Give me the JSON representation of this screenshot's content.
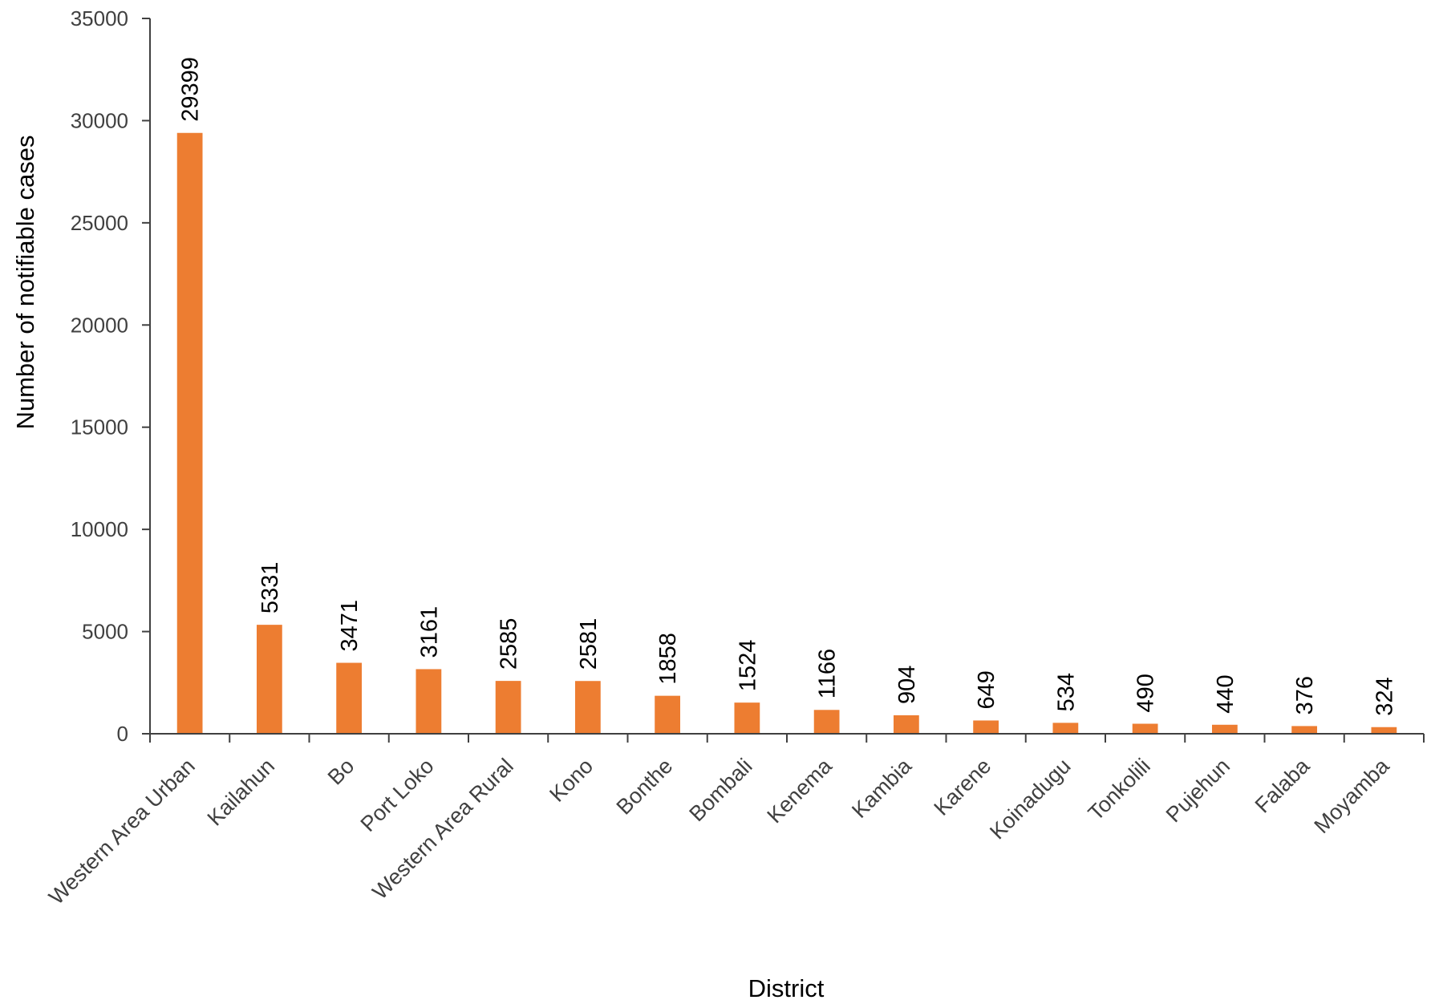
{
  "chart_data": {
    "type": "bar",
    "title": "",
    "xlabel": "District",
    "ylabel": "Number of notifiable  cases",
    "ylim": [
      0,
      35000
    ],
    "yticks": [
      0,
      5000,
      10000,
      15000,
      20000,
      25000,
      30000,
      35000
    ],
    "grid": false,
    "legend": "none",
    "bar_color": "#ED7D31",
    "categories": [
      "Western Area Urban",
      "Kailahun",
      "Bo",
      "Port Loko",
      "Western Area Rural",
      "Kono",
      "Bonthe",
      "Bombali",
      "Kenema",
      "Kambia",
      "Karene",
      "Koinadugu",
      "Tonkolili",
      "Pujehun",
      "Falaba",
      "Moyamba"
    ],
    "values": [
      29399,
      5331,
      3471,
      3161,
      2585,
      2581,
      1858,
      1524,
      1166,
      904,
      649,
      534,
      490,
      440,
      376,
      324
    ],
    "data_labels": [
      "29399",
      "5331",
      "3471",
      "3161",
      "2585",
      "2581",
      "1858",
      "1524",
      "1166",
      "904",
      "649",
      "534",
      "490",
      "440",
      "376",
      "324"
    ]
  }
}
